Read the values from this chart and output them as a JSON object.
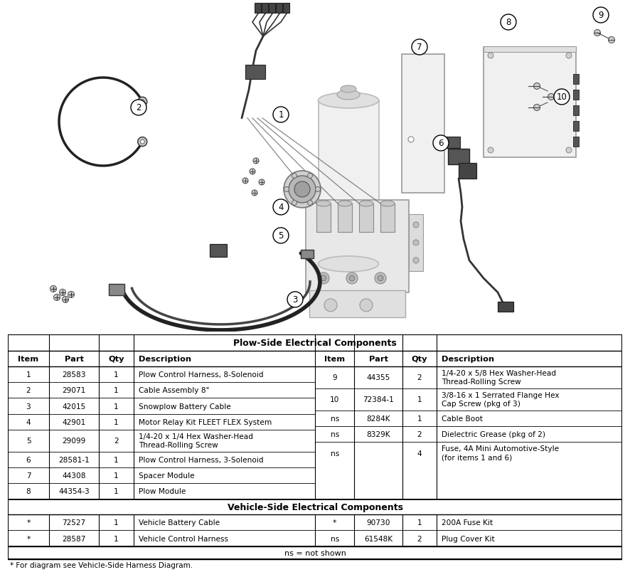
{
  "plow_side_header": "Plow-Side Electrical Components",
  "vehicle_side_header": "Vehicle-Side Electrical Components",
  "ns_note": "ns = not shown",
  "footer_note": "* For diagram see Vehicle-Side Harness Diagram.",
  "plow_rows_left": [
    [
      "1",
      "28583",
      "1",
      "Plow Control Harness, 8-Solenoid"
    ],
    [
      "2",
      "29071",
      "1",
      "Cable Assembly 8\""
    ],
    [
      "3",
      "42015",
      "1",
      "Snowplow Battery Cable"
    ],
    [
      "4",
      "42901",
      "1",
      "Motor Relay Kit FLEET FLEX System"
    ],
    [
      "5",
      "29099",
      "2",
      "1/4-20 x 1/4 Hex Washer-Head\nThread-Rolling Screw"
    ],
    [
      "6",
      "28581-1",
      "1",
      "Plow Control Harness, 3-Solenoid"
    ],
    [
      "7",
      "44308",
      "1",
      "Spacer Module"
    ],
    [
      "8",
      "44354-3",
      "1",
      "Plow Module"
    ]
  ],
  "plow_rows_right": [
    [
      "9",
      "44355",
      "2",
      "1/4-20 x 5/8 Hex Washer-Head\nThread-Rolling Screw"
    ],
    [
      "10",
      "72384-1",
      "1",
      "3/8-16 x 1 Serrated Flange Hex\nCap Screw (pkg of 3)"
    ],
    [
      "ns",
      "8284K",
      "1",
      "Cable Boot"
    ],
    [
      "ns",
      "8329K",
      "2",
      "Dielectric Grease (pkg of 2)"
    ],
    [
      "ns",
      "",
      "4",
      "Fuse, 4A Mini Automotive-Style\n(for items 1 and 6)"
    ]
  ],
  "vehicle_rows_left": [
    [
      "*",
      "72527",
      "1",
      "Vehicle Battery Cable"
    ],
    [
      "*",
      "28587",
      "1",
      "Vehicle Control Harness"
    ]
  ],
  "vehicle_rows_right": [
    [
      "*",
      "90730",
      "1",
      "200A Fuse Kit"
    ],
    [
      "ns",
      "61548K",
      "2",
      "Plug Cover Kit"
    ]
  ],
  "diagram_split": 0.575
}
